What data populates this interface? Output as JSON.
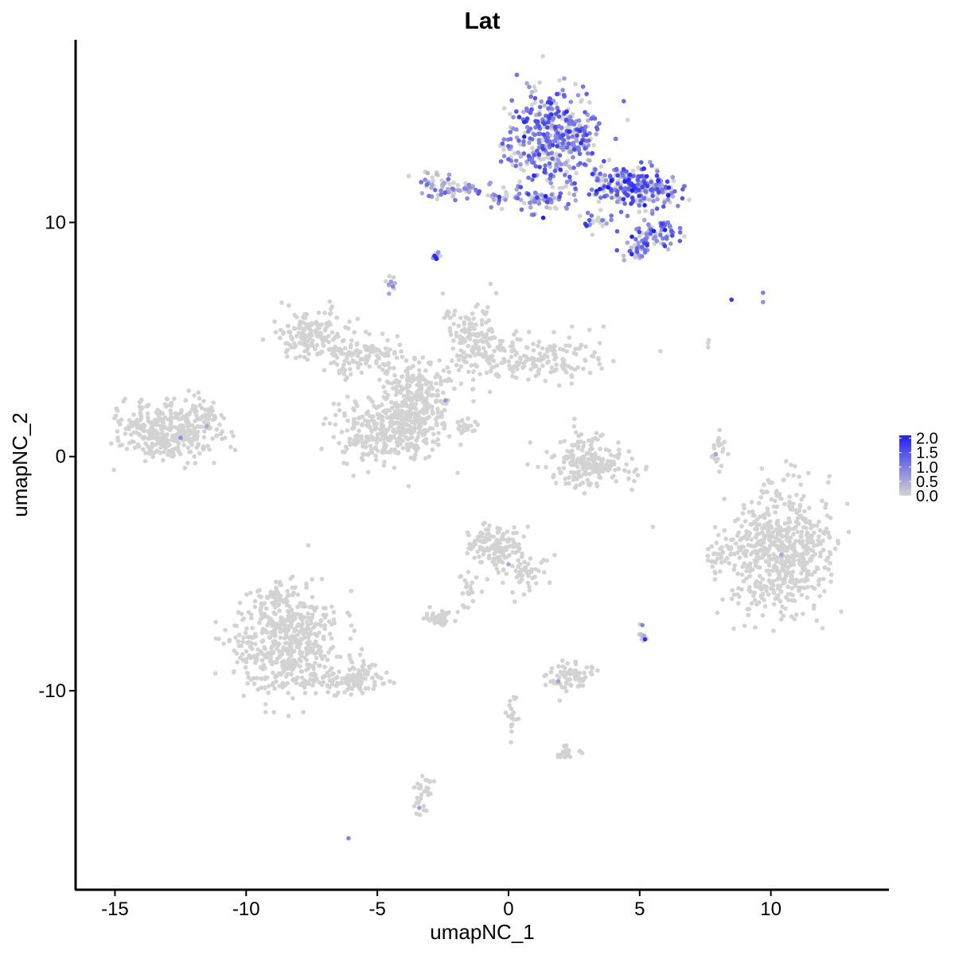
{
  "chart_data": {
    "type": "scatter",
    "title": "Lat",
    "xlabel": "umapNC_1",
    "ylabel": "umapNC_2",
    "xlim": [
      -16.5,
      14.5
    ],
    "ylim": [
      -18.5,
      17.8
    ],
    "x_ticks": [
      -15,
      -10,
      -5,
      0,
      5,
      10
    ],
    "y_ticks": [
      -10,
      0,
      10
    ],
    "x_tick_labels": [
      "-15",
      "-10",
      "-5",
      "0",
      "5",
      "10"
    ],
    "y_tick_labels": [
      "-10",
      "0",
      "10"
    ],
    "grid": false,
    "legend_position": "right",
    "color_scale": {
      "low": "#d3d3d3",
      "high": "#2020f0",
      "min": 0.0,
      "max": 2.1,
      "breaks": [
        0.0,
        0.5,
        1.0,
        1.5,
        2.0
      ],
      "labels": [
        "0.0",
        "0.5",
        "1.0",
        "1.5",
        "2.0"
      ]
    },
    "clusters": [
      {
        "cx": 1.7,
        "cy": 13.5,
        "sx": 0.9,
        "sy": 1.1,
        "n": 420,
        "expr": 1.0
      },
      {
        "cx": 4.8,
        "cy": 11.5,
        "sx": 0.8,
        "sy": 0.5,
        "n": 260,
        "expr": 1.2
      },
      {
        "cx": 5.6,
        "cy": 9.5,
        "sx": 0.5,
        "sy": 0.3,
        "n": 70,
        "expr": 1.0
      },
      {
        "cx": 4.9,
        "cy": 8.8,
        "sx": 0.3,
        "sy": 0.2,
        "n": 30,
        "expr": 0.9
      },
      {
        "cx": 1.2,
        "cy": 11.0,
        "sx": 0.6,
        "sy": 0.3,
        "n": 60,
        "expr": 0.9
      },
      {
        "cx": 3.3,
        "cy": 10.1,
        "sx": 0.3,
        "sy": 0.2,
        "n": 20,
        "expr": 1.0
      },
      {
        "cx": -2.6,
        "cy": 11.6,
        "sx": 0.4,
        "sy": 0.3,
        "n": 45,
        "expr": 0.5
      },
      {
        "cx": -1.7,
        "cy": 11.3,
        "sx": 0.4,
        "sy": 0.2,
        "n": 30,
        "expr": 0.6
      },
      {
        "cx": -0.5,
        "cy": 11.1,
        "sx": 0.3,
        "sy": 0.15,
        "n": 14,
        "expr": 0.8
      },
      {
        "cx": -2.8,
        "cy": 8.6,
        "sx": 0.12,
        "sy": 0.15,
        "n": 10,
        "expr": 0.9
      },
      {
        "cx": -4.5,
        "cy": 7.3,
        "sx": 0.12,
        "sy": 0.2,
        "n": 12,
        "expr": 0.5
      },
      {
        "cx": -7.5,
        "cy": 5.2,
        "sx": 0.7,
        "sy": 0.5,
        "n": 150,
        "expr": 0
      },
      {
        "cx": -5.5,
        "cy": 4.3,
        "sx": 0.8,
        "sy": 0.4,
        "n": 120,
        "expr": 0
      },
      {
        "cx": -1.3,
        "cy": 5.0,
        "sx": 0.6,
        "sy": 0.8,
        "n": 150,
        "expr": 0
      },
      {
        "cx": 1.2,
        "cy": 4.1,
        "sx": 1.2,
        "sy": 0.5,
        "n": 160,
        "expr": 0
      },
      {
        "cx": -3.5,
        "cy": 3.0,
        "sx": 0.7,
        "sy": 0.6,
        "n": 160,
        "expr": 0
      },
      {
        "cx": -4.8,
        "cy": 0.9,
        "sx": 0.9,
        "sy": 0.7,
        "n": 260,
        "expr": 0
      },
      {
        "cx": -3.6,
        "cy": 1.6,
        "sx": 0.6,
        "sy": 0.6,
        "n": 120,
        "expr": 0
      },
      {
        "cx": -1.8,
        "cy": 1.3,
        "sx": 0.6,
        "sy": 0.2,
        "n": 30,
        "expr": 0
      },
      {
        "cx": -13.0,
        "cy": 1.1,
        "sx": 0.9,
        "sy": 0.6,
        "n": 320,
        "expr": 0
      },
      {
        "cx": -11.8,
        "cy": 1.6,
        "sx": 0.5,
        "sy": 0.4,
        "n": 60,
        "expr": 0
      },
      {
        "cx": 3.0,
        "cy": -0.4,
        "sx": 0.8,
        "sy": 0.4,
        "n": 180,
        "expr": 0
      },
      {
        "cx": 3.0,
        "cy": 0.5,
        "sx": 0.4,
        "sy": 0.4,
        "n": 30,
        "expr": 0
      },
      {
        "cx": 8.0,
        "cy": 0.2,
        "sx": 0.15,
        "sy": 0.5,
        "n": 22,
        "expr": 0
      },
      {
        "cx": 10.3,
        "cy": -4.0,
        "sx": 1.0,
        "sy": 1.3,
        "n": 620,
        "expr": 0
      },
      {
        "cx": 8.0,
        "cy": -4.5,
        "sx": 0.2,
        "sy": 0.4,
        "n": 25,
        "expr": 0
      },
      {
        "cx": -0.5,
        "cy": -3.8,
        "sx": 0.5,
        "sy": 0.4,
        "n": 130,
        "expr": 0
      },
      {
        "cx": 0.5,
        "cy": -5.0,
        "sx": 0.5,
        "sy": 0.4,
        "n": 50,
        "expr": 0
      },
      {
        "cx": -1.5,
        "cy": -5.6,
        "sx": 0.3,
        "sy": 0.4,
        "n": 20,
        "expr": 0
      },
      {
        "cx": -2.6,
        "cy": -6.9,
        "sx": 0.3,
        "sy": 0.15,
        "n": 45,
        "expr": 0
      },
      {
        "cx": -8.5,
        "cy": -8.0,
        "sx": 1.0,
        "sy": 1.1,
        "n": 520,
        "expr": 0
      },
      {
        "cx": -8.7,
        "cy": -6.0,
        "sx": 0.4,
        "sy": 0.4,
        "n": 50,
        "expr": 0
      },
      {
        "cx": -6.0,
        "cy": -9.5,
        "sx": 0.8,
        "sy": 0.35,
        "n": 110,
        "expr": 0
      },
      {
        "cx": 2.4,
        "cy": -9.4,
        "sx": 0.4,
        "sy": 0.3,
        "n": 70,
        "expr": 0
      },
      {
        "cx": 5.1,
        "cy": -7.5,
        "sx": 0.08,
        "sy": 0.2,
        "n": 10,
        "expr": 0.4
      },
      {
        "cx": -3.3,
        "cy": -14.5,
        "sx": 0.2,
        "sy": 0.5,
        "n": 30,
        "expr": 0
      },
      {
        "cx": 0.1,
        "cy": -11.2,
        "sx": 0.15,
        "sy": 0.5,
        "n": 20,
        "expr": 0
      },
      {
        "cx": 2.1,
        "cy": -12.6,
        "sx": 0.3,
        "sy": 0.15,
        "n": 22,
        "expr": 0
      },
      {
        "cx": 7.5,
        "cy": 5.0,
        "sx": 0.1,
        "sy": 0.15,
        "n": 3,
        "expr": 0
      }
    ],
    "highlight_points": [
      {
        "x": 8.5,
        "y": 6.7,
        "v": 1.8
      },
      {
        "x": 9.7,
        "y": 7.0,
        "v": 1.0
      },
      {
        "x": 9.7,
        "y": 6.6,
        "v": 0.8
      },
      {
        "x": 3.8,
        "y": 11.5,
        "v": 2.1
      },
      {
        "x": -12.5,
        "y": 0.8,
        "v": 0.8
      },
      {
        "x": -11.5,
        "y": 1.3,
        "v": 0.5
      },
      {
        "x": -6.1,
        "y": -16.3,
        "v": 0.9
      },
      {
        "x": 7.9,
        "y": 0.1,
        "v": 0.6
      },
      {
        "x": 10.4,
        "y": -4.2,
        "v": 0.5
      },
      {
        "x": 5.1,
        "y": -7.2,
        "v": 0.9
      },
      {
        "x": -2.4,
        "y": 2.4,
        "v": 0.7
      },
      {
        "x": 0.0,
        "y": -4.6,
        "v": 0.5
      },
      {
        "x": 1.9,
        "y": -9.6,
        "v": 0.6
      },
      {
        "x": -3.4,
        "y": -15.0,
        "v": 0.6
      }
    ]
  }
}
